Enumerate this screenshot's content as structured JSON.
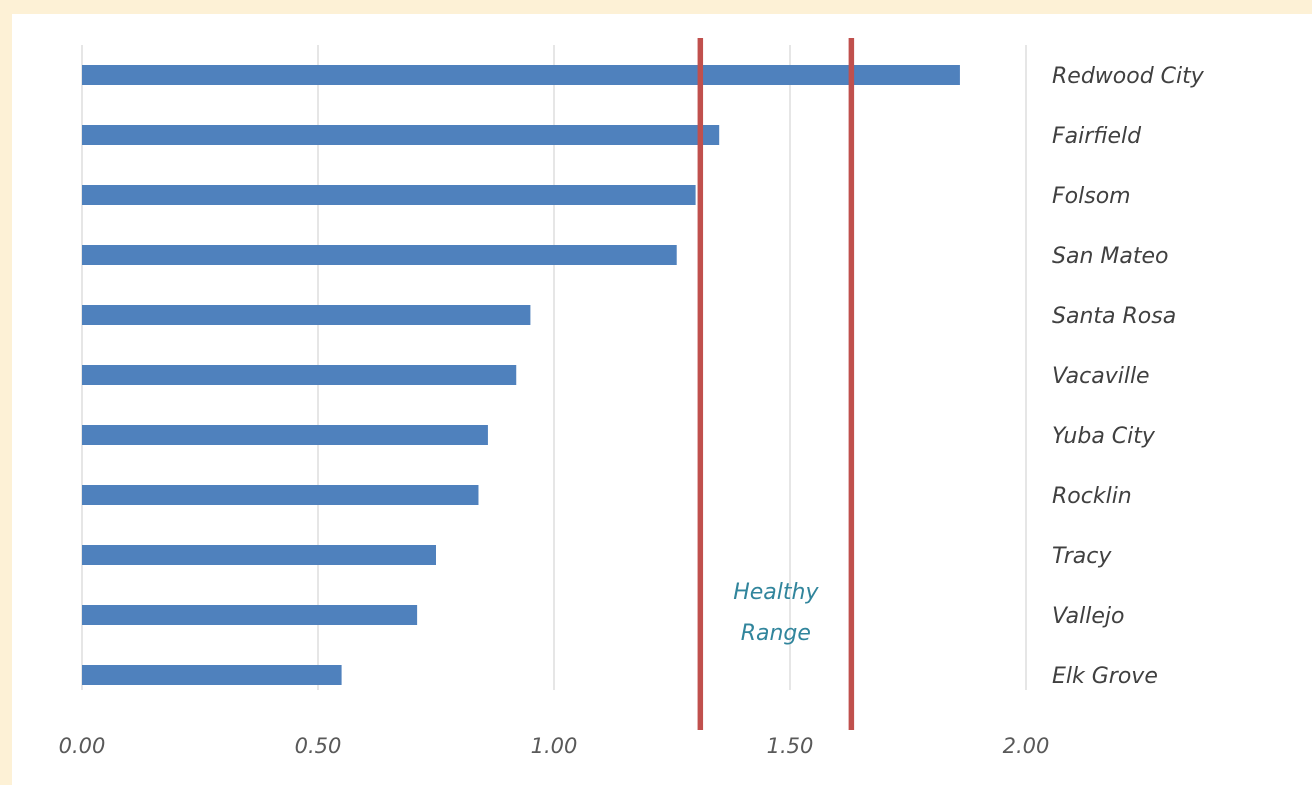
{
  "chart_data": {
    "type": "bar",
    "orientation": "horizontal",
    "categories": [
      "Redwood City",
      "Fairfield",
      "Folsom",
      "San Mateo",
      "Santa Rosa",
      "Vacaville",
      "Yuba City",
      "Rocklin",
      "Tracy",
      "Vallejo",
      "Elk Grove"
    ],
    "values": [
      1.86,
      1.35,
      1.3,
      1.26,
      0.95,
      0.92,
      0.86,
      0.84,
      0.75,
      0.71,
      0.55
    ],
    "xlim": [
      0,
      2
    ],
    "xticks": [
      0,
      0.5,
      1,
      1.5,
      2
    ],
    "xtick_labels": [
      "0.00",
      "0.50",
      "1.00",
      "1.50",
      "2.00"
    ],
    "grid": "vertical",
    "category_labels_side": "right",
    "bar_color": "#4f81bd",
    "reference_lines": [
      {
        "x": 1.31,
        "color": "#c0504d"
      },
      {
        "x": 1.63,
        "color": "#c0504d"
      }
    ],
    "annotation": {
      "lines": [
        "Healthy",
        "Range"
      ],
      "x": 1.47,
      "color": "#31859c"
    }
  }
}
